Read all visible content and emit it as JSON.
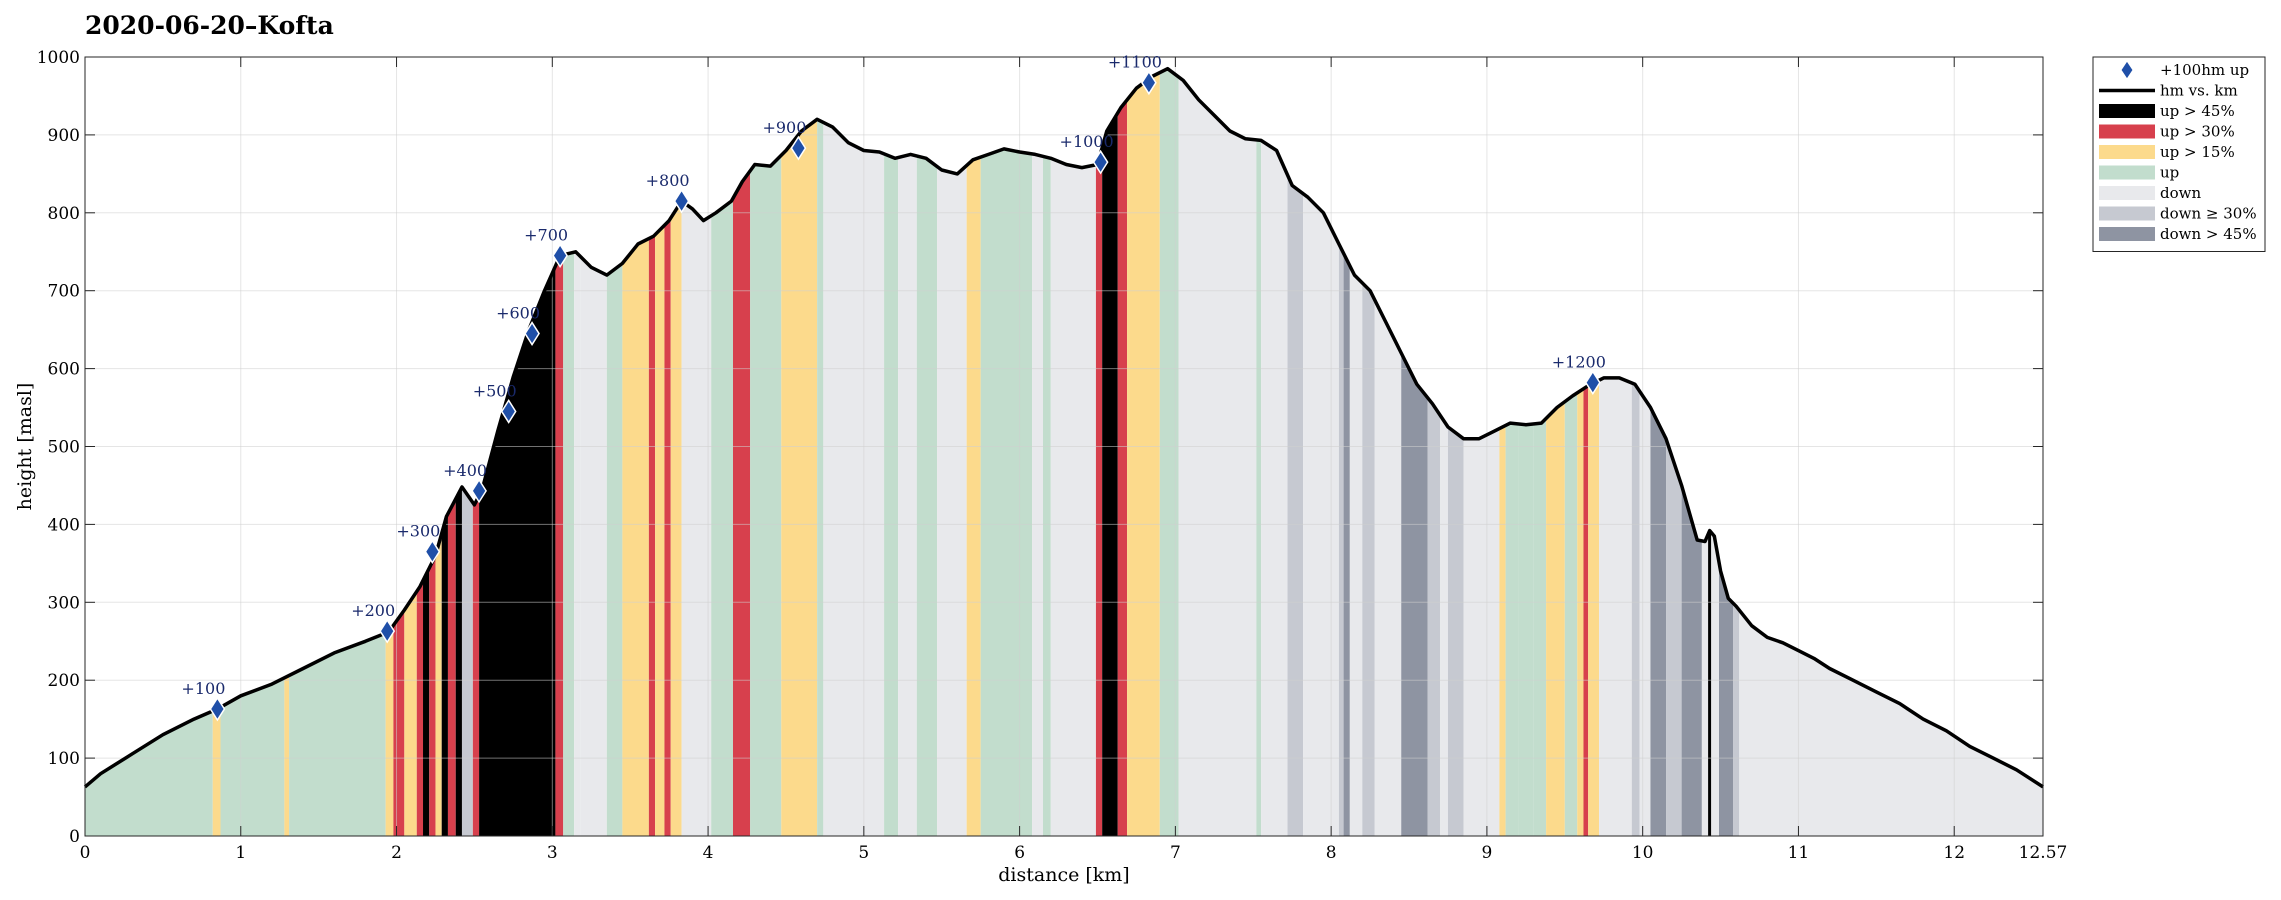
{
  "chart_data": {
    "type": "area",
    "title": "2020-06-20–Kofta",
    "xlabel": "distance [km]",
    "ylabel": "height [masl]",
    "xlim": [
      0,
      12.57
    ],
    "ylim": [
      0,
      1000
    ],
    "xticks": [
      0,
      1,
      2,
      3,
      4,
      5,
      6,
      7,
      8,
      9,
      10,
      11,
      12,
      12.57
    ],
    "xtick_labels": [
      "0",
      "1",
      "2",
      "3",
      "4",
      "5",
      "6",
      "7",
      "8",
      "9",
      "10",
      "11",
      "12",
      "12.57"
    ],
    "yticks": [
      0,
      100,
      200,
      300,
      400,
      500,
      600,
      700,
      800,
      900,
      1000
    ],
    "grid": true,
    "legend_position": "outside top-right",
    "series": [
      {
        "name": "hm vs. km",
        "x": [
          0,
          0.1,
          0.3,
          0.5,
          0.7,
          0.85,
          1.0,
          1.2,
          1.4,
          1.6,
          1.8,
          1.95,
          2.05,
          2.15,
          2.25,
          2.32,
          2.42,
          2.5,
          2.55,
          2.65,
          2.75,
          2.85,
          2.95,
          3.05,
          3.15,
          3.25,
          3.35,
          3.45,
          3.55,
          3.65,
          3.75,
          3.83,
          3.9,
          3.97,
          4.05,
          4.15,
          4.22,
          4.3,
          4.4,
          4.5,
          4.6,
          4.7,
          4.8,
          4.9,
          5.0,
          5.1,
          5.2,
          5.3,
          5.4,
          5.5,
          5.6,
          5.7,
          5.8,
          5.9,
          6.0,
          6.1,
          6.2,
          6.3,
          6.4,
          6.5,
          6.56,
          6.65,
          6.75,
          6.85,
          6.95,
          7.05,
          7.15,
          7.25,
          7.35,
          7.45,
          7.55,
          7.65,
          7.75,
          7.85,
          7.95,
          8.05,
          8.15,
          8.25,
          8.35,
          8.45,
          8.55,
          8.65,
          8.75,
          8.85,
          8.95,
          9.05,
          9.15,
          9.25,
          9.35,
          9.45,
          9.55,
          9.65,
          9.75,
          9.85,
          9.95,
          10.05,
          10.15,
          10.25,
          10.35,
          10.4,
          10.43,
          10.46,
          10.5,
          10.55,
          10.6,
          10.7,
          10.8,
          10.9,
          11.0,
          11.1,
          11.2,
          11.35,
          11.5,
          11.65,
          11.8,
          11.95,
          12.1,
          12.25,
          12.4,
          12.57
        ],
        "y": [
          63,
          80,
          105,
          130,
          150,
          163,
          180,
          195,
          215,
          235,
          250,
          262,
          290,
          320,
          360,
          410,
          448,
          425,
          445,
          520,
          590,
          650,
          700,
          745,
          750,
          730,
          720,
          735,
          760,
          770,
          790,
          815,
          805,
          790,
          800,
          815,
          840,
          862,
          860,
          880,
          905,
          920,
          910,
          890,
          880,
          878,
          870,
          875,
          870,
          855,
          850,
          868,
          875,
          882,
          878,
          875,
          870,
          862,
          858,
          862,
          905,
          935,
          960,
          975,
          985,
          970,
          945,
          925,
          905,
          895,
          893,
          880,
          835,
          820,
          800,
          760,
          720,
          700,
          660,
          620,
          580,
          555,
          525,
          510,
          510,
          520,
          530,
          528,
          530,
          550,
          565,
          578,
          588,
          588,
          580,
          550,
          510,
          450,
          380,
          378,
          392,
          385,
          340,
          305,
          295,
          270,
          255,
          248,
          238,
          228,
          215,
          200,
          185,
          170,
          150,
          135,
          115,
          100,
          85,
          63
        ]
      }
    ],
    "markers": {
      "name": "+100hm up",
      "x": [
        0.85,
        1.94,
        2.23,
        2.53,
        2.72,
        2.87,
        3.05,
        3.83,
        4.58,
        6.52,
        6.83,
        9.68
      ],
      "y": [
        163,
        263,
        365,
        443,
        545,
        645,
        745,
        815,
        883,
        865,
        967,
        582
      ],
      "labels": [
        "+100",
        "+200",
        "+300",
        "+400",
        "+500",
        "+600",
        "+700",
        "+800",
        "+900",
        "+1000",
        "+1100",
        "+1200"
      ]
    },
    "legend": [
      {
        "label": "+100hm up",
        "kind": "marker",
        "color": "#1f4fa8"
      },
      {
        "label": "hm vs. km",
        "kind": "line",
        "color": "#000000"
      },
      {
        "label": "up > 45%",
        "kind": "patch",
        "color": "#000000"
      },
      {
        "label": "up > 30%",
        "kind": "patch",
        "color": "#d7404d"
      },
      {
        "label": "up > 15%",
        "kind": "patch",
        "color": "#fcda8c"
      },
      {
        "label": "up",
        "kind": "patch",
        "color": "#c2ddcd"
      },
      {
        "label": "down",
        "kind": "patch",
        "color": "#e8e9ec"
      },
      {
        "label": "down ≥ 30%",
        "kind": "patch",
        "color": "#c6c9d1"
      },
      {
        "label": "down > 45%",
        "kind": "patch",
        "color": "#8e94a2"
      }
    ],
    "segment_colors": {
      "up45": "#000000",
      "up30": "#d7404d",
      "up15": "#fcda8c",
      "up": "#c2ddcd",
      "down": "#e8e9ec",
      "down30": "#c6c9d1",
      "down45": "#8e94a2"
    },
    "segments": [
      {
        "x0": 0,
        "x1": 0.82,
        "cls": "up"
      },
      {
        "x0": 0.82,
        "x1": 0.87,
        "cls": "up15"
      },
      {
        "x0": 0.87,
        "x1": 1.28,
        "cls": "up"
      },
      {
        "x0": 1.28,
        "x1": 1.31,
        "cls": "up15"
      },
      {
        "x0": 1.31,
        "x1": 1.93,
        "cls": "up"
      },
      {
        "x0": 1.93,
        "x1": 1.98,
        "cls": "up15"
      },
      {
        "x0": 1.98,
        "x1": 2.05,
        "cls": "up30"
      },
      {
        "x0": 2.05,
        "x1": 2.13,
        "cls": "up15"
      },
      {
        "x0": 2.13,
        "x1": 2.17,
        "cls": "up30"
      },
      {
        "x0": 2.17,
        "x1": 2.21,
        "cls": "up45"
      },
      {
        "x0": 2.21,
        "x1": 2.25,
        "cls": "up30"
      },
      {
        "x0": 2.25,
        "x1": 2.29,
        "cls": "up15"
      },
      {
        "x0": 2.29,
        "x1": 2.33,
        "cls": "up45"
      },
      {
        "x0": 2.33,
        "x1": 2.38,
        "cls": "up30"
      },
      {
        "x0": 2.38,
        "x1": 2.42,
        "cls": "up45"
      },
      {
        "x0": 2.42,
        "x1": 2.49,
        "cls": "down30"
      },
      {
        "x0": 2.49,
        "x1": 2.53,
        "cls": "up30"
      },
      {
        "x0": 2.53,
        "x1": 3.02,
        "cls": "up45"
      },
      {
        "x0": 3.02,
        "x1": 3.07,
        "cls": "up30"
      },
      {
        "x0": 3.07,
        "x1": 3.14,
        "cls": "up"
      },
      {
        "x0": 3.14,
        "x1": 3.18,
        "cls": "down"
      },
      {
        "x0": 3.18,
        "x1": 3.35,
        "cls": "down"
      },
      {
        "x0": 3.35,
        "x1": 3.45,
        "cls": "up"
      },
      {
        "x0": 3.45,
        "x1": 3.62,
        "cls": "up15"
      },
      {
        "x0": 3.62,
        "x1": 3.66,
        "cls": "up30"
      },
      {
        "x0": 3.66,
        "x1": 3.72,
        "cls": "up15"
      },
      {
        "x0": 3.72,
        "x1": 3.76,
        "cls": "up30"
      },
      {
        "x0": 3.76,
        "x1": 3.83,
        "cls": "up15"
      },
      {
        "x0": 3.83,
        "x1": 4.02,
        "cls": "down"
      },
      {
        "x0": 4.02,
        "x1": 4.16,
        "cls": "up"
      },
      {
        "x0": 4.16,
        "x1": 4.27,
        "cls": "up30"
      },
      {
        "x0": 4.27,
        "x1": 4.47,
        "cls": "up"
      },
      {
        "x0": 4.47,
        "x1": 4.7,
        "cls": "up15"
      },
      {
        "x0": 4.7,
        "x1": 4.74,
        "cls": "up"
      },
      {
        "x0": 4.74,
        "x1": 5.13,
        "cls": "down"
      },
      {
        "x0": 5.13,
        "x1": 5.22,
        "cls": "up"
      },
      {
        "x0": 5.22,
        "x1": 5.34,
        "cls": "down"
      },
      {
        "x0": 5.34,
        "x1": 5.47,
        "cls": "up"
      },
      {
        "x0": 5.47,
        "x1": 5.66,
        "cls": "down"
      },
      {
        "x0": 5.66,
        "x1": 5.75,
        "cls": "up15"
      },
      {
        "x0": 5.75,
        "x1": 6.08,
        "cls": "up"
      },
      {
        "x0": 6.08,
        "x1": 6.15,
        "cls": "down"
      },
      {
        "x0": 6.15,
        "x1": 6.2,
        "cls": "up"
      },
      {
        "x0": 6.2,
        "x1": 6.49,
        "cls": "down"
      },
      {
        "x0": 6.49,
        "x1": 6.53,
        "cls": "up30"
      },
      {
        "x0": 6.53,
        "x1": 6.63,
        "cls": "up45"
      },
      {
        "x0": 6.63,
        "x1": 6.69,
        "cls": "up30"
      },
      {
        "x0": 6.69,
        "x1": 6.9,
        "cls": "up15"
      },
      {
        "x0": 6.9,
        "x1": 7.02,
        "cls": "up"
      },
      {
        "x0": 7.02,
        "x1": 7.52,
        "cls": "down"
      },
      {
        "x0": 7.52,
        "x1": 7.55,
        "cls": "up"
      },
      {
        "x0": 7.55,
        "x1": 7.72,
        "cls": "down"
      },
      {
        "x0": 7.72,
        "x1": 7.82,
        "cls": "down30"
      },
      {
        "x0": 7.82,
        "x1": 8.05,
        "cls": "down"
      },
      {
        "x0": 8.05,
        "x1": 8.08,
        "cls": "down30"
      },
      {
        "x0": 8.08,
        "x1": 8.12,
        "cls": "down45"
      },
      {
        "x0": 8.12,
        "x1": 8.2,
        "cls": "down"
      },
      {
        "x0": 8.2,
        "x1": 8.28,
        "cls": "down30"
      },
      {
        "x0": 8.28,
        "x1": 8.45,
        "cls": "down"
      },
      {
        "x0": 8.45,
        "x1": 8.62,
        "cls": "down45"
      },
      {
        "x0": 8.62,
        "x1": 8.7,
        "cls": "down30"
      },
      {
        "x0": 8.7,
        "x1": 8.75,
        "cls": "down"
      },
      {
        "x0": 8.75,
        "x1": 8.85,
        "cls": "down30"
      },
      {
        "x0": 8.85,
        "x1": 9.08,
        "cls": "down"
      },
      {
        "x0": 9.08,
        "x1": 9.12,
        "cls": "up15"
      },
      {
        "x0": 9.12,
        "x1": 9.2,
        "cls": "up"
      },
      {
        "x0": 9.2,
        "x1": 9.3,
        "cls": "up"
      },
      {
        "x0": 9.3,
        "x1": 9.38,
        "cls": "up"
      },
      {
        "x0": 9.38,
        "x1": 9.5,
        "cls": "up15"
      },
      {
        "x0": 9.5,
        "x1": 9.58,
        "cls": "up"
      },
      {
        "x0": 9.58,
        "x1": 9.62,
        "cls": "up15"
      },
      {
        "x0": 9.62,
        "x1": 9.65,
        "cls": "up30"
      },
      {
        "x0": 9.65,
        "x1": 9.72,
        "cls": "up15"
      },
      {
        "x0": 9.72,
        "x1": 9.93,
        "cls": "down"
      },
      {
        "x0": 9.93,
        "x1": 9.98,
        "cls": "down30"
      },
      {
        "x0": 9.98,
        "x1": 10.05,
        "cls": "down"
      },
      {
        "x0": 10.05,
        "x1": 10.15,
        "cls": "down45"
      },
      {
        "x0": 10.15,
        "x1": 10.25,
        "cls": "down30"
      },
      {
        "x0": 10.25,
        "x1": 10.38,
        "cls": "down45"
      },
      {
        "x0": 10.38,
        "x1": 10.42,
        "cls": "down"
      },
      {
        "x0": 10.42,
        "x1": 10.44,
        "cls": "up45"
      },
      {
        "x0": 10.44,
        "x1": 10.49,
        "cls": "down"
      },
      {
        "x0": 10.49,
        "x1": 10.58,
        "cls": "down45"
      },
      {
        "x0": 10.58,
        "x1": 10.62,
        "cls": "down30"
      },
      {
        "x0": 10.62,
        "x1": 12.57,
        "cls": "down"
      }
    ]
  }
}
